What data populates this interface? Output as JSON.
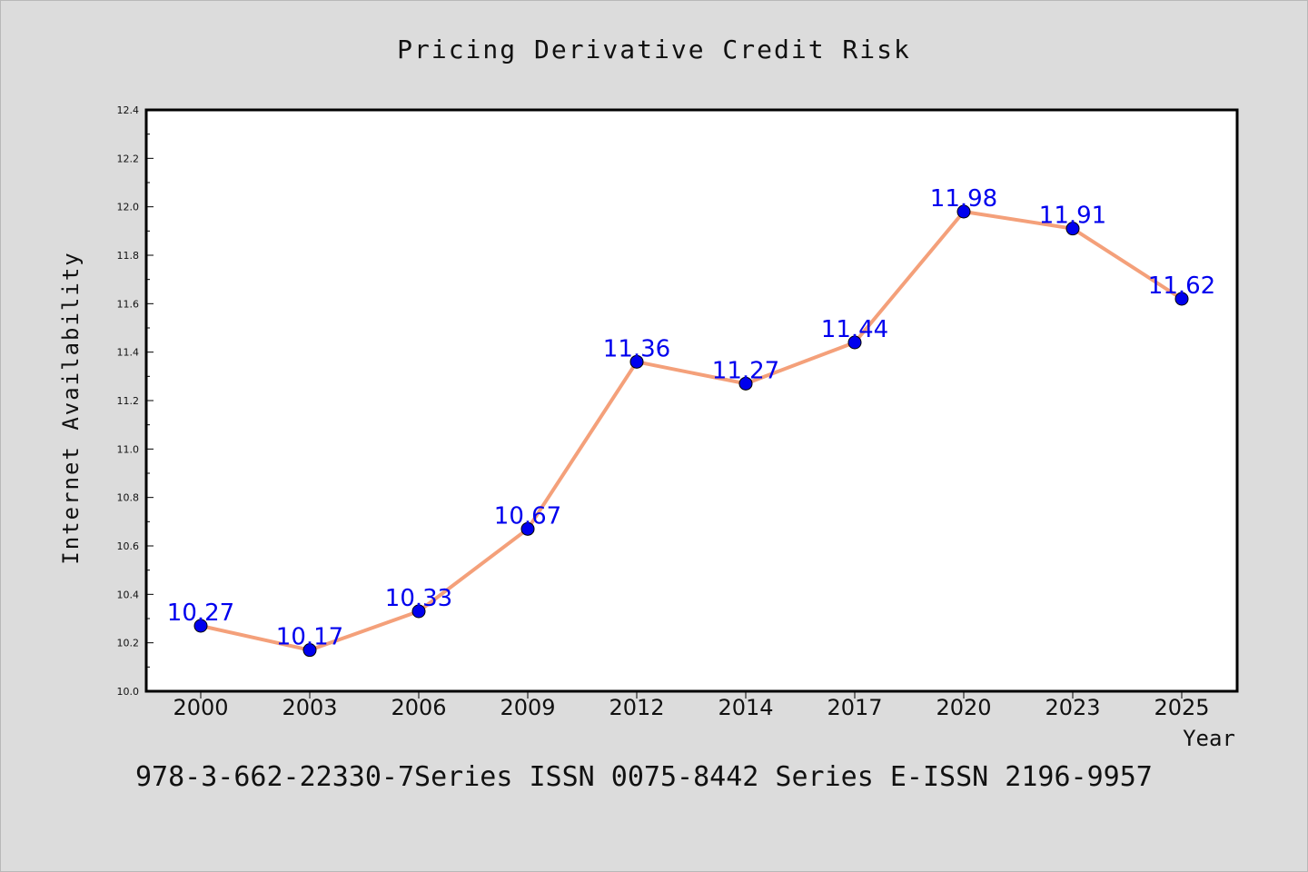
{
  "colors": {
    "background": "#dcdcdc",
    "plot_background": "#ffffff",
    "line": "#f4a07a",
    "marker": "#0000ee",
    "data_label": "#0000ee"
  },
  "footer": "978-3-662-22330-7Series ISSN 0075-8442 Series E-ISSN 2196-9957",
  "chart_data": {
    "type": "line",
    "title": "Pricing Derivative Credit Risk",
    "xlabel": "Year",
    "ylabel": "Internet Availability",
    "categories": [
      "2000",
      "2003",
      "2006",
      "2009",
      "2012",
      "2014",
      "2017",
      "2020",
      "2023",
      "2025"
    ],
    "series": [
      {
        "values": [
          10.27,
          10.17,
          10.33,
          10.67,
          11.36,
          11.27,
          11.44,
          11.98,
          11.91,
          11.62
        ]
      }
    ],
    "data_labels": [
      "10.27",
      "10.17",
      "10.33",
      "10.67",
      "11.36",
      "11.27",
      "11.44",
      "11.98",
      "11.91",
      "11.62"
    ],
    "ylim": [
      10.0,
      12.4
    ],
    "yticks": [
      "10.0",
      "10.2",
      "10.4",
      "10.6",
      "10.8",
      "11.0",
      "11.2",
      "11.4",
      "11.6",
      "11.8",
      "12.0",
      "12.2",
      "12.4"
    ],
    "grid": false,
    "legend": "none"
  }
}
